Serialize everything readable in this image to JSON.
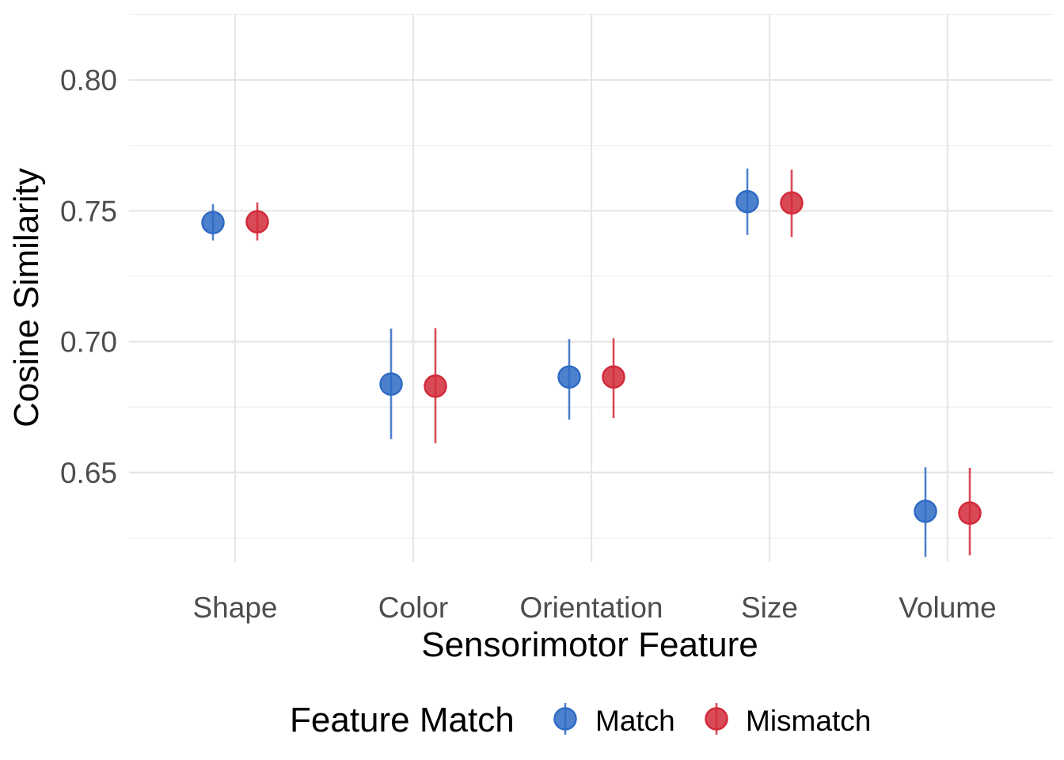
{
  "chart_data": {
    "type": "scatter",
    "xlabel": "Sensorimotor Feature",
    "ylabel": "Cosine Similarity",
    "categories": [
      "Shape",
      "Color",
      "Orientation",
      "Size",
      "Volume"
    ],
    "ylim": [
      0.61,
      0.825
    ],
    "yticks": [
      0.65,
      0.7,
      0.75,
      0.8
    ],
    "ytick_labels": [
      "0.65",
      "0.70",
      "0.75",
      "0.80"
    ],
    "grid": true,
    "legend": {
      "title": "Feature Match",
      "position": "bottom"
    },
    "series": [
      {
        "name": "Match",
        "color": "#2f6bc4",
        "values": [
          0.7455,
          0.6838,
          0.6865,
          0.7535,
          0.6352
        ],
        "lower": [
          0.7387,
          0.6628,
          0.6702,
          0.7408,
          0.6177
        ],
        "upper": [
          0.7525,
          0.705,
          0.701,
          0.7662,
          0.652
        ]
      },
      {
        "name": "Mismatch",
        "color": "#d22a3a",
        "values": [
          0.7458,
          0.683,
          0.6865,
          0.753,
          0.6345
        ],
        "lower": [
          0.7387,
          0.6612,
          0.6708,
          0.74,
          0.6184
        ],
        "upper": [
          0.7532,
          0.7052,
          0.7013,
          0.7657,
          0.6518
        ]
      }
    ]
  }
}
